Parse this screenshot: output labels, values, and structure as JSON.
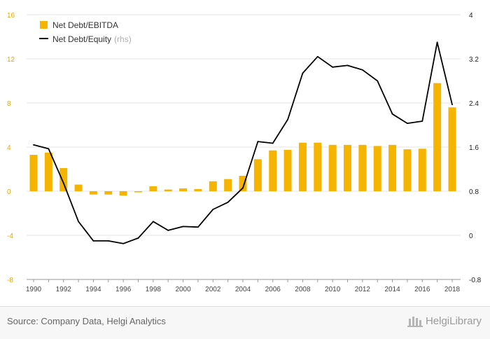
{
  "chart_data": {
    "type": "bar+line",
    "title": "",
    "x": [
      1990,
      1991,
      1992,
      1993,
      1994,
      1995,
      1996,
      1997,
      1998,
      1999,
      2000,
      2001,
      2002,
      2003,
      2004,
      2005,
      2006,
      2007,
      2008,
      2009,
      2010,
      2011,
      2012,
      2013,
      2014,
      2015,
      2016,
      2017,
      2018
    ],
    "xticks": [
      "1990",
      "1992",
      "1994",
      "1996",
      "1998",
      "2000",
      "2002",
      "2004",
      "2006",
      "2008",
      "2010",
      "2012",
      "2014",
      "2016",
      "2018"
    ],
    "series": [
      {
        "name": "Net Debt/EBITDA",
        "type": "bar",
        "axis": "left",
        "color": "#f5b400",
        "values": [
          3.3,
          3.5,
          2.1,
          0.6,
          -0.3,
          -0.3,
          -0.4,
          -0.1,
          0.45,
          0.15,
          0.25,
          0.2,
          0.9,
          1.1,
          1.4,
          2.9,
          3.7,
          3.75,
          4.4,
          4.4,
          4.2,
          4.2,
          4.2,
          4.1,
          4.2,
          3.8,
          3.85,
          9.8,
          7.6
        ]
      },
      {
        "name": "Net Debt/Equity",
        "legend_suffix": "(rhs)",
        "type": "line",
        "axis": "right",
        "color": "#000000",
        "values": [
          1.64,
          1.57,
          0.95,
          0.25,
          -0.1,
          -0.1,
          -0.15,
          -0.05,
          0.25,
          0.09,
          0.16,
          0.15,
          0.47,
          0.6,
          0.86,
          1.7,
          1.67,
          2.1,
          2.94,
          3.24,
          3.05,
          3.08,
          3.0,
          2.8,
          2.2,
          2.03,
          2.07,
          3.5,
          2.37
        ]
      }
    ],
    "y_left": {
      "ylim": [
        -8,
        16
      ],
      "ticks": [
        "-8",
        "-4",
        "0",
        "4",
        "8",
        "12",
        "16"
      ],
      "tick_color": "#e6a800"
    },
    "y_right": {
      "ylim": [
        -0.8,
        4
      ],
      "ticks": [
        "-0.8",
        "0",
        "0.8",
        "1.6",
        "2.4",
        "3.2",
        "4"
      ]
    },
    "legend_placement": "top-left",
    "grid": true
  },
  "footer": {
    "source": "Source: Company Data, Helgi Analytics",
    "logo_text": "HelgiLibrary"
  }
}
